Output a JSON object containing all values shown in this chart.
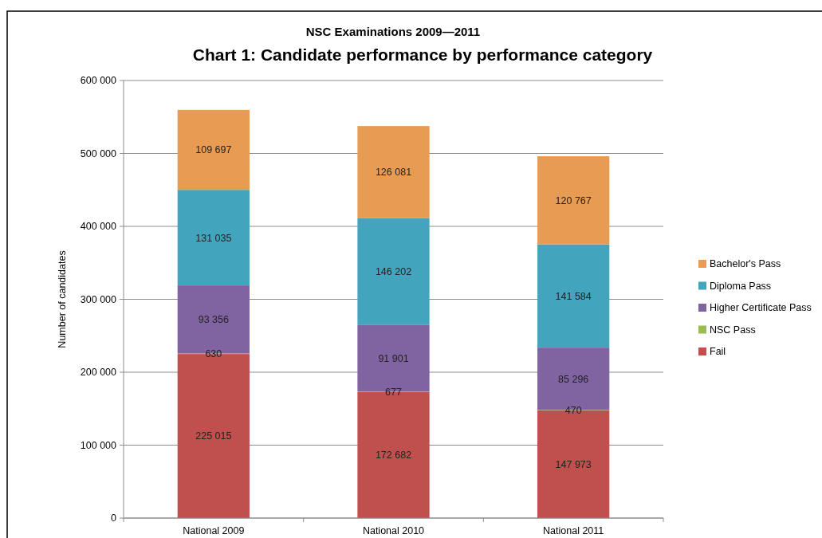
{
  "chart_data": {
    "type": "bar",
    "title": "NSC Examinations 2009—2011",
    "subtitle": "Chart 1: Candidate performance by performance category",
    "ylabel": "Number of candidates",
    "categories": [
      "National 2009",
      "National 2010",
      "National 2011"
    ],
    "stacked": true,
    "legend": "right",
    "grid": "y",
    "ylim": [
      0,
      600000
    ],
    "yticks": [
      {
        "value": 0,
        "label": "0"
      },
      {
        "value": 100000,
        "label": "100 000"
      },
      {
        "value": 200000,
        "label": "200 000"
      },
      {
        "value": 300000,
        "label": "300 000"
      },
      {
        "value": 400000,
        "label": "400 000"
      },
      {
        "value": 500000,
        "label": "500 000"
      },
      {
        "value": 600000,
        "label": "600 000"
      }
    ],
    "series": [
      {
        "name": "Fail",
        "color": "#c0504d",
        "values": [
          225015,
          172682,
          147973
        ],
        "value_labels": [
          "225 015",
          "172 682",
          "147 973"
        ]
      },
      {
        "name": "NSC Pass",
        "color": "#9bbb59",
        "values": [
          630,
          677,
          470
        ],
        "value_labels": [
          "630",
          "677",
          "470"
        ]
      },
      {
        "name": "Higher Certificate Pass",
        "color": "#8064a2",
        "values": [
          93356,
          91901,
          85296
        ],
        "value_labels": [
          "93 356",
          "91 901",
          "85 296"
        ]
      },
      {
        "name": "Diploma Pass",
        "color": "#42a5bd",
        "values": [
          131035,
          146202,
          141584
        ],
        "value_labels": [
          "131 035",
          "146 202",
          "141 584"
        ]
      },
      {
        "name": "Bachelor's Pass",
        "color": "#e89b52",
        "values": [
          109697,
          126081,
          120767
        ],
        "value_labels": [
          "109 697",
          "126 081",
          "120 767"
        ]
      }
    ]
  }
}
